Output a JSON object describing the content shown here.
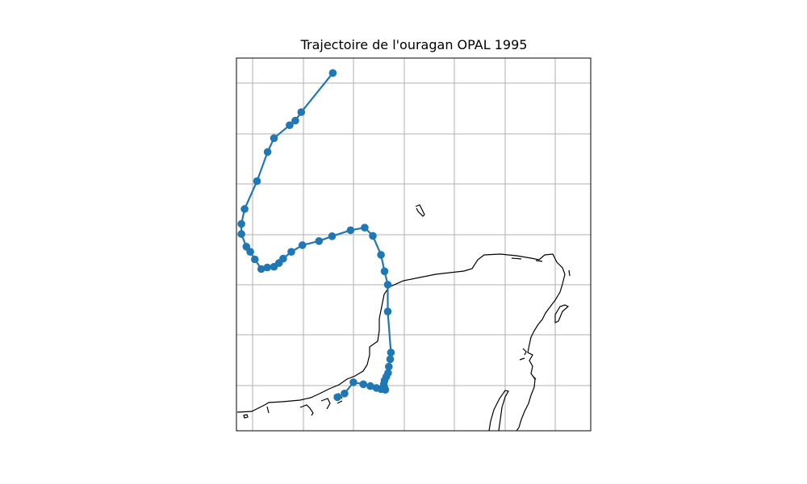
{
  "title": "Trajectoire de l'ouragan OPAL 1995",
  "colors": {
    "track": "#1f77b4",
    "coast": "#000000",
    "grid": "#b0b0b0",
    "frame": "#000000",
    "background": "#ffffff"
  },
  "chart_data": {
    "type": "map-track",
    "title": "Trajectoire de l'ouragan OPAL 1995",
    "marker": "circle",
    "grid": true,
    "axis_tick_labels": false,
    "track_points": [
      [
        0.285,
        0.91
      ],
      [
        0.305,
        0.9
      ],
      [
        0.33,
        0.87
      ],
      [
        0.358,
        0.875
      ],
      [
        0.378,
        0.88
      ],
      [
        0.395,
        0.885
      ],
      [
        0.408,
        0.888
      ],
      [
        0.42,
        0.89
      ],
      [
        0.418,
        0.885
      ],
      [
        0.416,
        0.875
      ],
      [
        0.418,
        0.865
      ],
      [
        0.423,
        0.855
      ],
      [
        0.428,
        0.845
      ],
      [
        0.43,
        0.828
      ],
      [
        0.434,
        0.808
      ],
      [
        0.436,
        0.79
      ],
      [
        0.427,
        0.68
      ],
      [
        0.427,
        0.608
      ],
      [
        0.418,
        0.572
      ],
      [
        0.408,
        0.528
      ],
      [
        0.385,
        0.477
      ],
      [
        0.362,
        0.455
      ],
      [
        0.322,
        0.462
      ],
      [
        0.27,
        0.478
      ],
      [
        0.233,
        0.491
      ],
      [
        0.186,
        0.502
      ],
      [
        0.155,
        0.52
      ],
      [
        0.132,
        0.538
      ],
      [
        0.12,
        0.55
      ],
      [
        0.106,
        0.56
      ],
      [
        0.087,
        0.562
      ],
      [
        0.07,
        0.566
      ],
      [
        0.052,
        0.54
      ],
      [
        0.039,
        0.52
      ],
      [
        0.028,
        0.506
      ],
      [
        0.014,
        0.472
      ],
      [
        0.014,
        0.445
      ],
      [
        0.023,
        0.405
      ],
      [
        0.058,
        0.33
      ],
      [
        0.088,
        0.252
      ],
      [
        0.106,
        0.215
      ],
      [
        0.15,
        0.18
      ],
      [
        0.166,
        0.168
      ],
      [
        0.183,
        0.145
      ],
      [
        0.272,
        0.04
      ]
    ]
  }
}
